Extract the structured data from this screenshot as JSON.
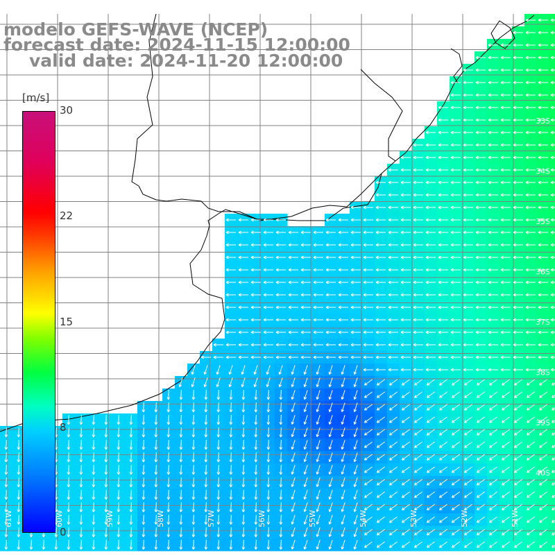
{
  "titles": {
    "model": "modelo GEFS-WAVE (NCEP)",
    "forecast": "forecast date: 2024-11-15 12:00:00",
    "valid": "valid date: 2024-11-20 12:00:00"
  },
  "colorbar": {
    "unit": "[m/s]",
    "ticks": [
      "30",
      "22",
      "15",
      "8",
      "0"
    ],
    "min": 0,
    "max": 30
  },
  "lat_labels": [
    "33S",
    "34S",
    "35S",
    "36S",
    "37S",
    "38S",
    "39S",
    "40S"
  ],
  "lon_labels": [
    "61W",
    "60W",
    "59W",
    "58W",
    "57W",
    "56W",
    "55W",
    "54W",
    "53W",
    "52W",
    "51W"
  ],
  "colors": {
    "land": "#ffffff",
    "coast": "#000000",
    "grid": "#808080",
    "title": "#8a8a8a",
    "arrow": "#ffffff"
  }
}
